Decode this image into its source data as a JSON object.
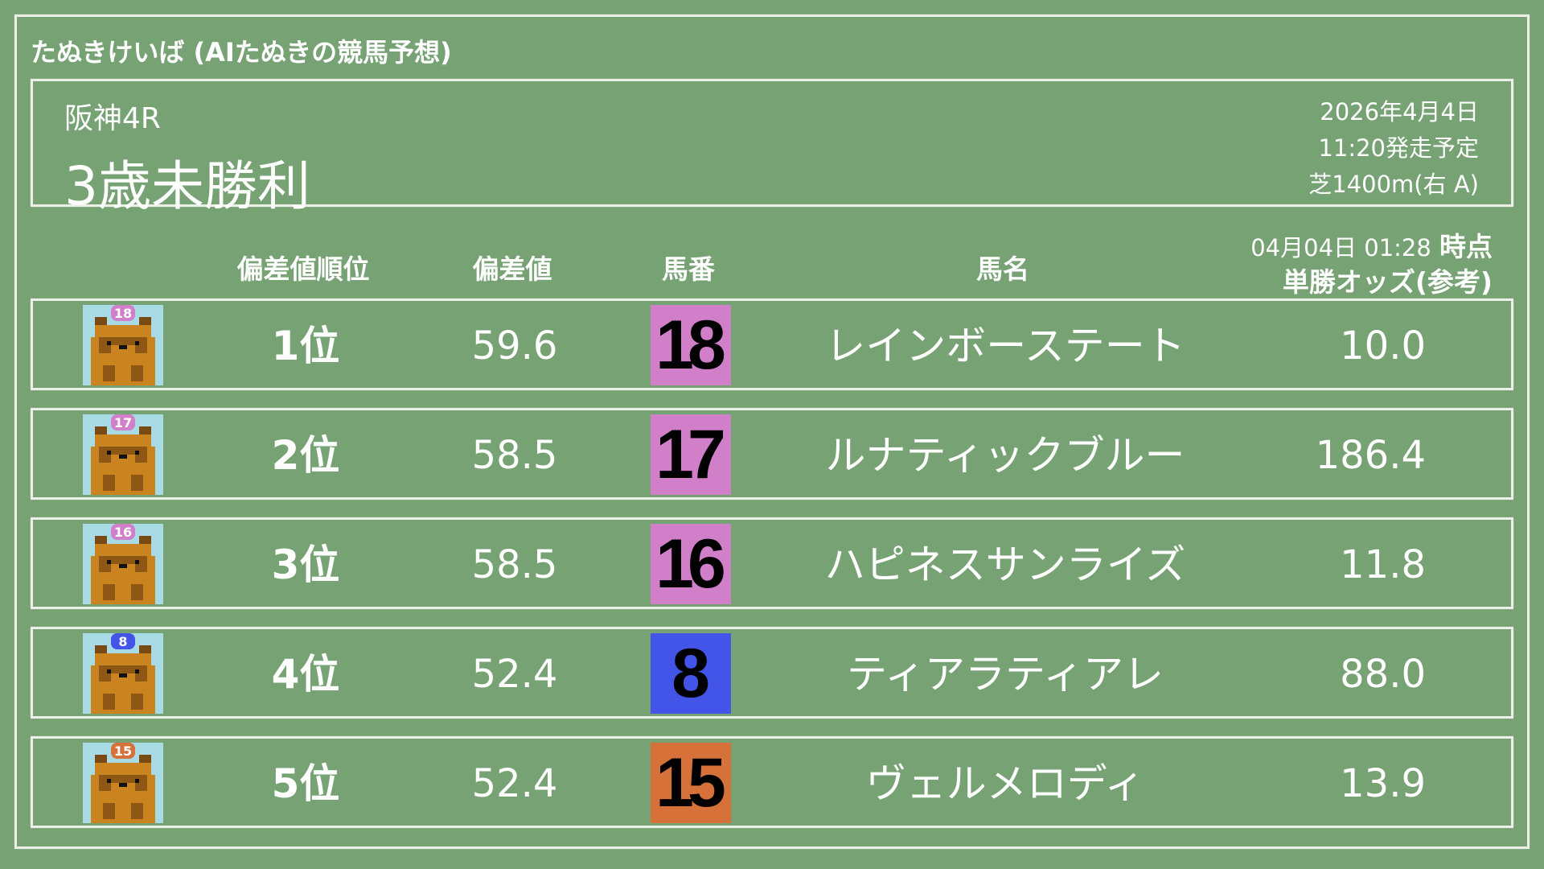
{
  "site_title": "たぬきけいば (AIたぬきの競馬予想)",
  "race": {
    "venue_round": "阪神4R",
    "name": "3歳未勝利",
    "date": "2026年4月4日",
    "start_time": "11:20発走予定",
    "course": "芝1400m(右 A)"
  },
  "columns": {
    "rank": "偏差値順位",
    "score": "偏差値",
    "number": "馬番",
    "name": "馬名",
    "odds_timestamp": "04月04日 01:28",
    "odds_timestamp_suffix": "時点",
    "odds": "単勝オッズ(参考)"
  },
  "rows": [
    {
      "rank": "1位",
      "score": "59.6",
      "number": "18",
      "name": "レインボーステート",
      "odds": "10.0",
      "color": "#d17fc9"
    },
    {
      "rank": "2位",
      "score": "58.5",
      "number": "17",
      "name": "ルナティックブルー",
      "odds": "186.4",
      "color": "#d17fc9"
    },
    {
      "rank": "3位",
      "score": "58.5",
      "number": "16",
      "name": "ハピネスサンライズ",
      "odds": "11.8",
      "color": "#d17fc9"
    },
    {
      "rank": "4位",
      "score": "52.4",
      "number": "8",
      "name": "ティアラティアレ",
      "odds": "88.0",
      "color": "#4255e8"
    },
    {
      "rank": "5位",
      "score": "52.4",
      "number": "15",
      "name": "ヴェルメロディ",
      "odds": "13.9",
      "color": "#d7713a"
    }
  ],
  "colors": {
    "background": "#76a274",
    "chalk": "#f5f5f0"
  },
  "icons": {
    "avatar": "tanuki-pixel-icon"
  }
}
